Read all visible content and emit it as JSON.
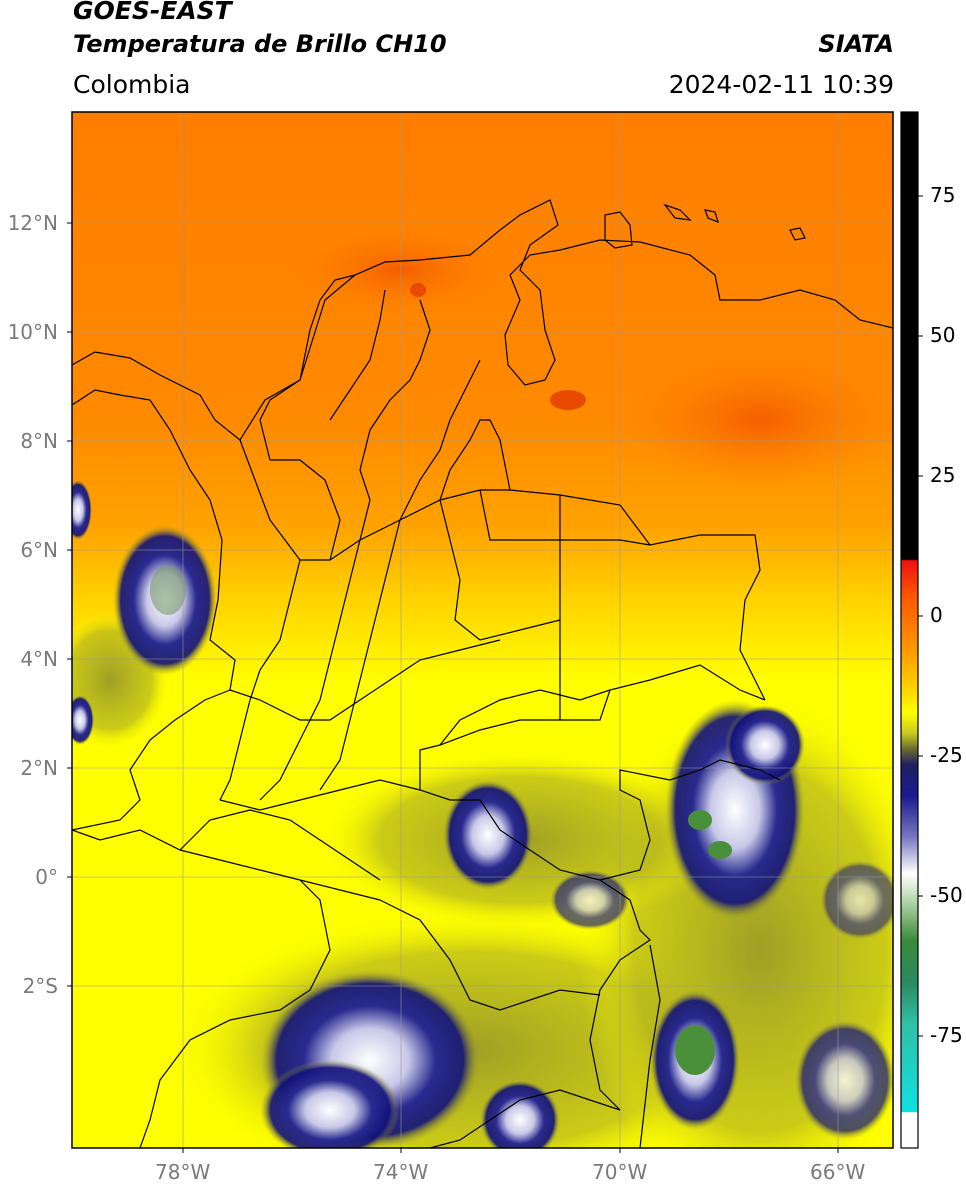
{
  "header": {
    "satellite": "GOES-EAST",
    "product": "Temperatura de Brillo CH10",
    "region": "Colombia",
    "source": "SIATA",
    "datetime": "2024-02-11 10:39"
  },
  "map": {
    "lat_ticks": [
      "12°N",
      "10°N",
      "8°N",
      "6°N",
      "4°N",
      "2°N",
      "0°",
      "2°S"
    ],
    "lon_ticks": [
      "78°W",
      "74°W",
      "70°W",
      "66°W"
    ],
    "extent": {
      "lon_min": -80.0,
      "lon_max": -65.0,
      "lat_min": -5.0,
      "lat_max": 14.0
    }
  },
  "colorbar": {
    "ticks": [
      "75",
      "50",
      "25",
      "0",
      "-25",
      "-50",
      "-75"
    ],
    "tick_values": [
      75,
      50,
      25,
      0,
      -25,
      -50,
      -75
    ],
    "range": [
      -95,
      90
    ],
    "colors": {
      "warm_max": "#000000",
      "red": "#ee1c0c",
      "orange": "#ff7a00",
      "yellow": "#ffff00",
      "olive": "#a8a824",
      "navy": "#10107a",
      "white": "#ffffff",
      "green": "#4a8f3a",
      "cyan": "#18d8d0"
    }
  }
}
